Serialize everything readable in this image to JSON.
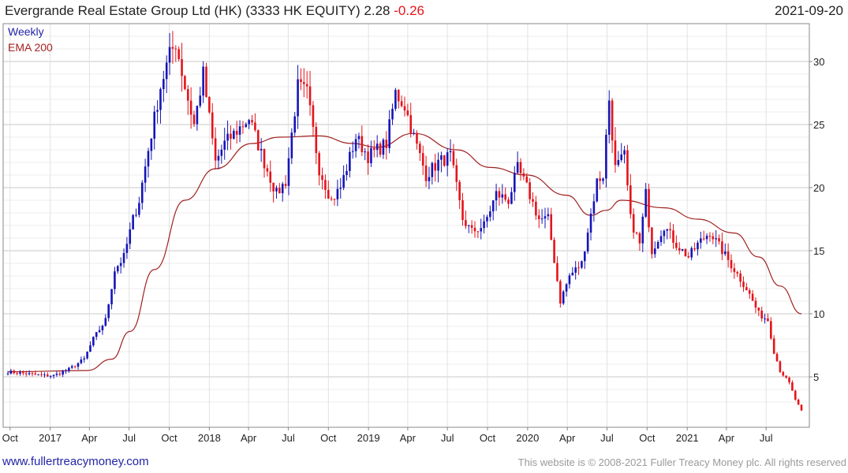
{
  "header": {
    "title": "Evergrande Real Estate Group Ltd (HK) (3333 HK EQUITY) 2.28",
    "change": "-0.26",
    "date": "2021-09-20"
  },
  "legend": {
    "weekly": "Weekly",
    "ema": "EMA 200"
  },
  "footer": {
    "left": "www.fullertreacymoney.com",
    "right": "This website is © 2008-2021 Fuller Treacy Money plc. All rights reserved"
  },
  "colors": {
    "up": "#1515b8",
    "down": "#e3141b",
    "ema": "#a02020",
    "grid": "#d6d6d6",
    "frame": "#888888"
  },
  "chart_data": {
    "type": "candlestick",
    "frequency": "weekly",
    "x_tick_labels": [
      "Oct",
      "2017",
      "Apr",
      "Jul",
      "Oct",
      "2018",
      "Apr",
      "Jul",
      "Oct",
      "2019",
      "Apr",
      "Jul",
      "Oct",
      "2020",
      "Apr",
      "Jul",
      "Oct",
      "2021",
      "Apr",
      "Jul"
    ],
    "y_ticks": [
      5,
      10,
      15,
      20,
      25,
      30
    ],
    "ylim": [
      1,
      33
    ],
    "x_start": "2016-09-26",
    "x_end": "2021-09-20",
    "y_axis_side": "right",
    "grid": true,
    "weekly_close_anchors": [
      {
        "date": "2016-09-26",
        "close": 5.4
      },
      {
        "date": "2016-12-19",
        "close": 5.1
      },
      {
        "date": "2017-01-09",
        "close": 5.1
      },
      {
        "date": "2017-02-13",
        "close": 5.6
      },
      {
        "date": "2017-03-20",
        "close": 6.4
      },
      {
        "date": "2017-04-10",
        "close": 8.0
      },
      {
        "date": "2017-05-08",
        "close": 9.5
      },
      {
        "date": "2017-05-29",
        "close": 13.5
      },
      {
        "date": "2017-06-19",
        "close": 14.5
      },
      {
        "date": "2017-07-10",
        "close": 17.5
      },
      {
        "date": "2017-07-24",
        "close": 19.0
      },
      {
        "date": "2017-08-14",
        "close": 23.0
      },
      {
        "date": "2017-09-11",
        "close": 28.0
      },
      {
        "date": "2017-10-02",
        "close": 30.5
      },
      {
        "date": "2017-10-16",
        "close": 31.5
      },
      {
        "date": "2017-11-06",
        "close": 28.0
      },
      {
        "date": "2017-11-27",
        "close": 25.0
      },
      {
        "date": "2017-12-18",
        "close": 29.0
      },
      {
        "date": "2018-01-15",
        "close": 22.0
      },
      {
        "date": "2018-02-05",
        "close": 23.5
      },
      {
        "date": "2018-03-05",
        "close": 24.5
      },
      {
        "date": "2018-04-02",
        "close": 25.5
      },
      {
        "date": "2018-05-07",
        "close": 22.0
      },
      {
        "date": "2018-06-04",
        "close": 19.5
      },
      {
        "date": "2018-06-25",
        "close": 20.5
      },
      {
        "date": "2018-07-23",
        "close": 28.0
      },
      {
        "date": "2018-08-13",
        "close": 27.5
      },
      {
        "date": "2018-09-10",
        "close": 21.5
      },
      {
        "date": "2018-10-08",
        "close": 19.0
      },
      {
        "date": "2018-10-29",
        "close": 20.0
      },
      {
        "date": "2018-12-03",
        "close": 24.0
      },
      {
        "date": "2018-12-31",
        "close": 22.5
      },
      {
        "date": "2019-02-11",
        "close": 23.5
      },
      {
        "date": "2019-03-04",
        "close": 27.5
      },
      {
        "date": "2019-03-25",
        "close": 26.5
      },
      {
        "date": "2019-04-15",
        "close": 24.0
      },
      {
        "date": "2019-05-13",
        "close": 21.0
      },
      {
        "date": "2019-06-10",
        "close": 22.0
      },
      {
        "date": "2019-07-08",
        "close": 22.5
      },
      {
        "date": "2019-08-05",
        "close": 17.5
      },
      {
        "date": "2019-08-26",
        "close": 16.5
      },
      {
        "date": "2019-09-23",
        "close": 17.0
      },
      {
        "date": "2019-10-21",
        "close": 19.5
      },
      {
        "date": "2019-11-18",
        "close": 19.0
      },
      {
        "date": "2019-12-09",
        "close": 21.5
      },
      {
        "date": "2019-12-30",
        "close": 20.0
      },
      {
        "date": "2020-01-27",
        "close": 17.5
      },
      {
        "date": "2020-02-17",
        "close": 17.5
      },
      {
        "date": "2020-03-16",
        "close": 11.0
      },
      {
        "date": "2020-04-06",
        "close": 13.0
      },
      {
        "date": "2020-05-04",
        "close": 14.0
      },
      {
        "date": "2020-06-08",
        "close": 20.5
      },
      {
        "date": "2020-06-22",
        "close": 21.0
      },
      {
        "date": "2020-07-06",
        "close": 27.0
      },
      {
        "date": "2020-07-20",
        "close": 21.5
      },
      {
        "date": "2020-08-10",
        "close": 22.5
      },
      {
        "date": "2020-08-24",
        "close": 17.5
      },
      {
        "date": "2020-09-14",
        "close": 15.5
      },
      {
        "date": "2020-09-28",
        "close": 19.5
      },
      {
        "date": "2020-10-12",
        "close": 15.0
      },
      {
        "date": "2020-11-09",
        "close": 17.0
      },
      {
        "date": "2020-12-07",
        "close": 15.5
      },
      {
        "date": "2021-01-04",
        "close": 14.5
      },
      {
        "date": "2021-01-25",
        "close": 15.5
      },
      {
        "date": "2021-02-22",
        "close": 16.5
      },
      {
        "date": "2021-03-22",
        "close": 15.0
      },
      {
        "date": "2021-04-19",
        "close": 13.5
      },
      {
        "date": "2021-05-17",
        "close": 12.0
      },
      {
        "date": "2021-06-14",
        "close": 10.0
      },
      {
        "date": "2021-07-05",
        "close": 9.5
      },
      {
        "date": "2021-07-19",
        "close": 7.0
      },
      {
        "date": "2021-08-02",
        "close": 5.5
      },
      {
        "date": "2021-08-23",
        "close": 4.5
      },
      {
        "date": "2021-09-06",
        "close": 3.2
      },
      {
        "date": "2021-09-20",
        "close": 2.28
      }
    ],
    "ema_anchors": [
      {
        "date": "2016-09-26",
        "value": 5.4
      },
      {
        "date": "2017-03-27",
        "value": 5.5
      },
      {
        "date": "2017-05-22",
        "value": 6.4
      },
      {
        "date": "2017-07-03",
        "value": 8.6
      },
      {
        "date": "2017-08-28",
        "value": 13.5
      },
      {
        "date": "2017-11-06",
        "value": 19.0
      },
      {
        "date": "2018-01-15",
        "value": 21.5
      },
      {
        "date": "2018-04-09",
        "value": 23.5
      },
      {
        "date": "2018-06-11",
        "value": 24.0
      },
      {
        "date": "2018-09-10",
        "value": 24.1
      },
      {
        "date": "2018-11-26",
        "value": 23.5
      },
      {
        "date": "2019-01-21",
        "value": 23.2
      },
      {
        "date": "2019-04-15",
        "value": 24.3
      },
      {
        "date": "2019-07-22",
        "value": 23.0
      },
      {
        "date": "2019-10-07",
        "value": 21.6
      },
      {
        "date": "2019-12-30",
        "value": 21.0
      },
      {
        "date": "2020-03-30",
        "value": 19.4
      },
      {
        "date": "2020-05-25",
        "value": 17.8
      },
      {
        "date": "2020-06-29",
        "value": 18.2
      },
      {
        "date": "2020-08-03",
        "value": 19.0
      },
      {
        "date": "2020-11-09",
        "value": 18.4
      },
      {
        "date": "2021-01-25",
        "value": 17.5
      },
      {
        "date": "2021-04-19",
        "value": 16.4
      },
      {
        "date": "2021-06-14",
        "value": 14.5
      },
      {
        "date": "2021-08-02",
        "value": 12.2
      },
      {
        "date": "2021-09-20",
        "value": 10.0
      }
    ]
  }
}
